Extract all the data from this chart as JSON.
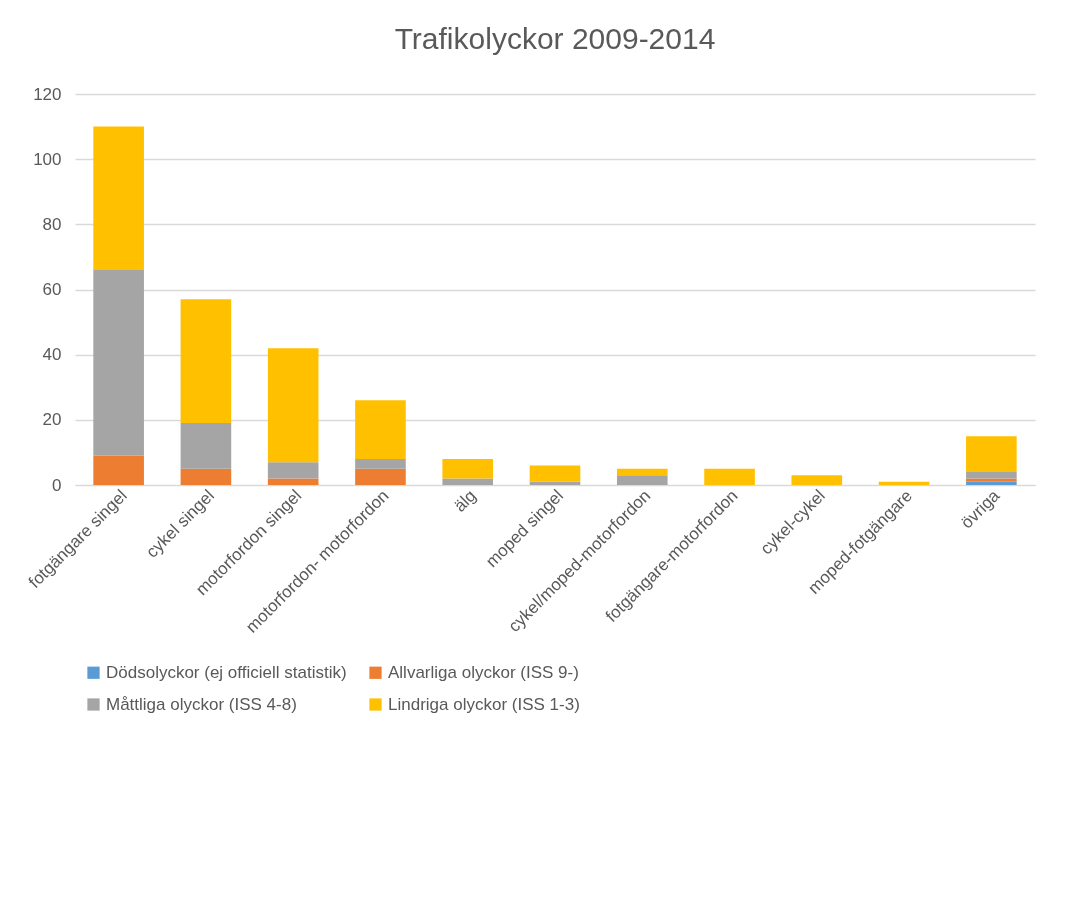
{
  "chart_data": {
    "type": "bar",
    "title": "Trafikolyckor  2009-2014",
    "stacked": true,
    "categories": [
      "fotgängare singel",
      "cykel singel",
      "motorfordon singel",
      "motorfordon- motorfordon",
      "älg",
      "moped singel",
      "cykel/moped-motorfordon",
      "fotgängare-motorfordon",
      "cykel-cykel",
      "moped-fotgängare",
      "övriga"
    ],
    "series": [
      {
        "name": "Dödsolyckor (ej officiell statistik)",
        "color": "#5b9bd5",
        "values": [
          0,
          0,
          0,
          0,
          0,
          0,
          0,
          0,
          0,
          0,
          1
        ]
      },
      {
        "name": "Allvarliga olyckor (ISS  9-)",
        "color": "#ed7d31",
        "values": [
          9,
          5,
          2,
          5,
          0,
          0,
          0,
          0,
          0,
          0,
          1
        ]
      },
      {
        "name": "Måttliga olyckor (ISS 4-8)",
        "color": "#a5a5a5",
        "values": [
          57,
          14,
          5,
          3,
          2,
          1,
          3,
          0,
          0,
          0,
          2
        ]
      },
      {
        "name": "Lindriga olyckor (ISS 1-3)",
        "color": "#ffc000",
        "values": [
          44,
          38,
          35,
          18,
          6,
          5,
          2,
          5,
          3,
          1,
          11
        ]
      }
    ],
    "ylim": [
      0,
      120
    ],
    "yticks": [
      0,
      20,
      40,
      60,
      80,
      100,
      120
    ],
    "grid": "y",
    "legend": "bottom"
  }
}
